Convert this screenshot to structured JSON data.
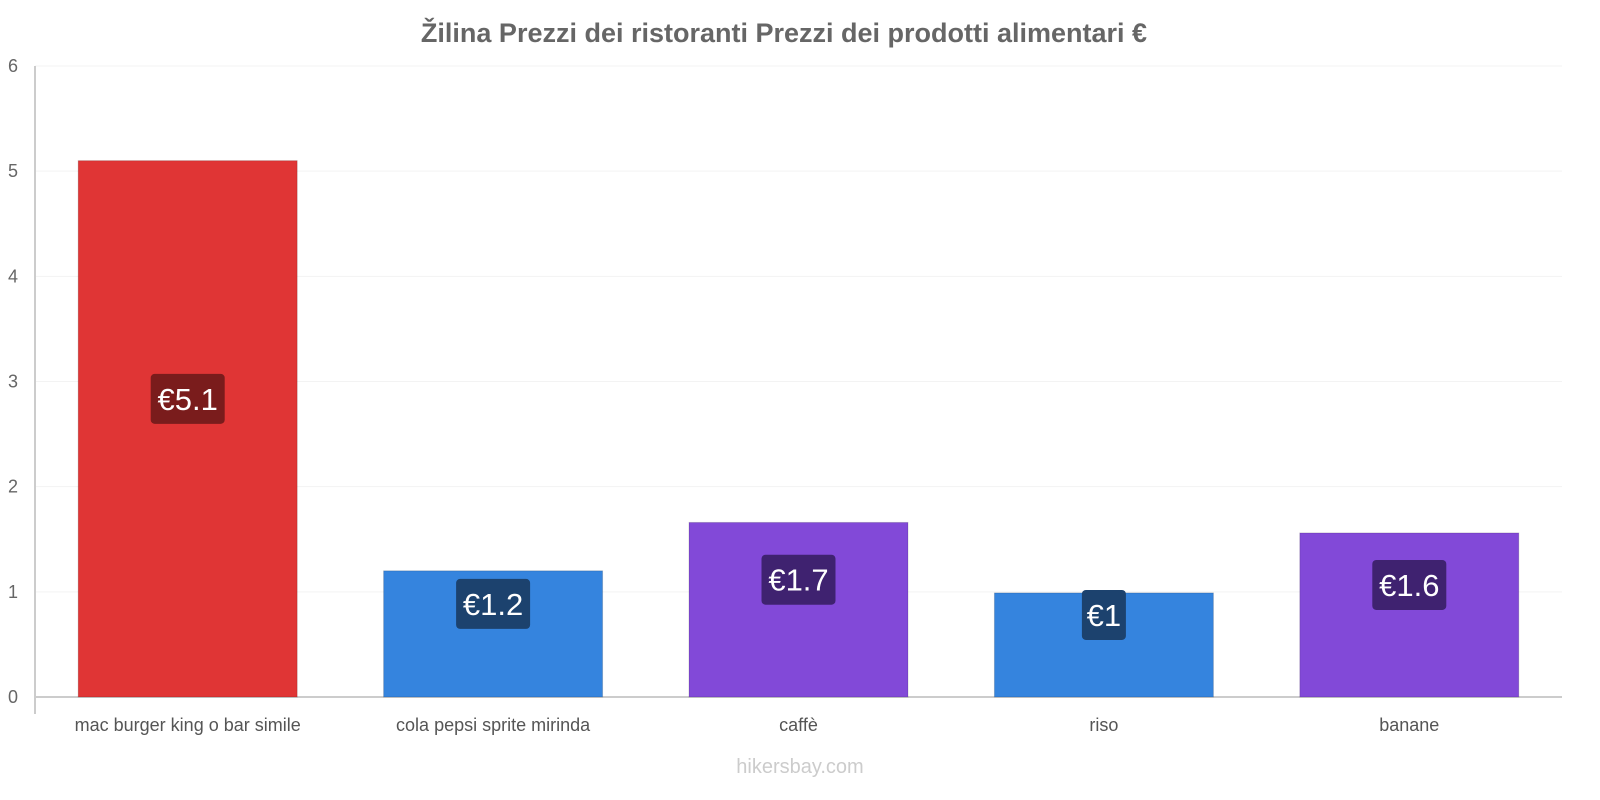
{
  "chart_data": {
    "type": "bar",
    "title": "Žilina Prezzi dei ristoranti Prezzi dei prodotti alimentari €",
    "categories": [
      "mac burger king o bar simile",
      "cola pepsi sprite mirinda",
      "caffè",
      "riso",
      "banane"
    ],
    "values": [
      5.1,
      1.2,
      1.66,
      0.99,
      1.56
    ],
    "value_labels": [
      "€5.1",
      "€1.2",
      "€1.7",
      "€1",
      "€1.6"
    ],
    "colors": [
      "#e03535",
      "#3584de",
      "#8249d8",
      "#3584de",
      "#8249d8"
    ],
    "label_colors": [
      "#7a1c1c",
      "#1c426e",
      "#3f2270",
      "#1c426e",
      "#3f2270"
    ],
    "ylim": [
      0,
      6
    ],
    "yticks": [
      0,
      1,
      2,
      3,
      4,
      5,
      6
    ],
    "xlabel": "",
    "ylabel": "",
    "grid": true
  },
  "watermark": "hikersbay.com"
}
